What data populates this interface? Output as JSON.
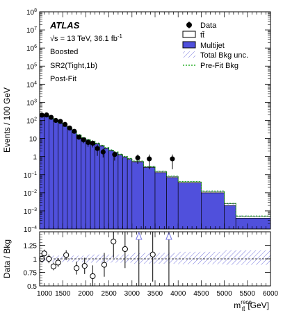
{
  "chart_data": [
    {
      "type": "bar",
      "panel": "main",
      "yscale": "log",
      "ylabel": "Events / 100 GeV",
      "ylim": [
        0.0001,
        100000000
      ],
      "xlim": [
        1000,
        6000
      ],
      "y_ticks": [
        {
          "v": 100000000,
          "base": "10",
          "exp": "8"
        },
        {
          "v": 10000000,
          "base": "10",
          "exp": "7"
        },
        {
          "v": 1000000,
          "base": "10",
          "exp": "6"
        },
        {
          "v": 100000,
          "base": "10",
          "exp": "5"
        },
        {
          "v": 10000,
          "base": "10",
          "exp": "4"
        },
        {
          "v": 1000,
          "base": "10",
          "exp": "3"
        },
        {
          "v": 100,
          "base": "10",
          "exp": "2"
        },
        {
          "v": 10,
          "base": "10",
          "exp": ""
        },
        {
          "v": 1,
          "base": "1",
          "exp": ""
        },
        {
          "v": 0.1,
          "base": "10",
          "exp": "−1"
        },
        {
          "v": 0.01,
          "base": "10",
          "exp": "−2"
        },
        {
          "v": 0.001,
          "base": "10",
          "exp": "−3"
        },
        {
          "v": 0.0001,
          "base": "10",
          "exp": "−4"
        }
      ],
      "bin_edges": [
        1000,
        1100,
        1200,
        1300,
        1400,
        1500,
        1600,
        1700,
        1800,
        1900,
        2000,
        2100,
        2200,
        2300,
        2400,
        2500,
        2600,
        2700,
        2800,
        2900,
        3000,
        3250,
        3500,
        3750,
        4000,
        4500,
        5000,
        5250,
        6000
      ],
      "series": [
        {
          "name": "Multijet",
          "color": "#5050dc",
          "values": [
            175,
            170,
            130,
            95,
            70,
            48,
            33,
            22,
            15,
            10,
            8,
            6.5,
            5,
            3.8,
            2.8,
            2.1,
            1.6,
            1.2,
            0.9,
            0.7,
            0.5,
            0.25,
            0.13,
            0.07,
            0.035,
            0.01,
            0.002,
            0.0004
          ]
        },
        {
          "name": "tt̄",
          "color": "#ffffff",
          "values": [
            5,
            5,
            4,
            3,
            2.5,
            2,
            1.5,
            1,
            0.8,
            0.6,
            0.5,
            0.4,
            0.3,
            0.25,
            0.2,
            0.15,
            0.12,
            0.1,
            0.08,
            0.06,
            0.05,
            0.03,
            0.02,
            0.01,
            0.005,
            0.002,
            0.0005,
            0.0001
          ]
        }
      ],
      "data_points": [
        {
          "x": 1050,
          "y": 195,
          "err": 14
        },
        {
          "x": 1150,
          "y": 200,
          "err": 14
        },
        {
          "x": 1250,
          "y": 148,
          "err": 12
        },
        {
          "x": 1350,
          "y": 100,
          "err": 10
        },
        {
          "x": 1450,
          "y": 88,
          "err": 9
        },
        {
          "x": 1550,
          "y": 60,
          "err": 8
        },
        {
          "x": 1650,
          "y": 38,
          "err": 6
        },
        {
          "x": 1750,
          "y": 25,
          "err": 5
        },
        {
          "x": 1850,
          "y": 12,
          "err": 3.5
        },
        {
          "x": 1950,
          "y": 8.5,
          "err": 3
        },
        {
          "x": 2050,
          "y": 6,
          "err": 2.5
        },
        {
          "x": 2150,
          "y": 5.5,
          "err": 2.3
        },
        {
          "x": 2250,
          "y": 2.8,
          "err": 1.7
        },
        {
          "x": 2375,
          "y": 1.8,
          "err": 0.9
        },
        {
          "x": 2625,
          "y": 1.3,
          "err": 0.7
        },
        {
          "x": 3125,
          "y": 0.85,
          "err": 0.45
        },
        {
          "x": 3375,
          "y": 0.75,
          "err": 0.55
        },
        {
          "x": 3875,
          "y": 0.75,
          "err": 0.55
        }
      ]
    },
    {
      "type": "scatter",
      "panel": "ratio",
      "ylabel": "Data / Bkg",
      "xlabel_base": "m",
      "xlabel_sub": "tt̄",
      "xlabel_sup": "reco",
      "xlabel_unit": "[GeV]",
      "ylim": [
        0.5,
        1.5
      ],
      "xlim": [
        1000,
        6000
      ],
      "y_ticks": [
        "1.25",
        "1",
        "0.75",
        "0.5"
      ],
      "x_ticks": [
        "1000",
        "1500",
        "2000",
        "2500",
        "3000",
        "3500",
        "4000",
        "4500",
        "5000",
        "5500",
        "6000"
      ],
      "reference": 1.0,
      "unc_band": [
        {
          "x0": 1000,
          "x1": 2000,
          "lo": 0.94,
          "hi": 1.06
        },
        {
          "x0": 2000,
          "x1": 3000,
          "lo": 0.93,
          "hi": 1.08
        },
        {
          "x0": 3000,
          "x1": 4000,
          "lo": 0.91,
          "hi": 1.11
        },
        {
          "x0": 4000,
          "x1": 5000,
          "lo": 0.9,
          "hi": 1.13
        },
        {
          "x0": 5000,
          "x1": 6000,
          "lo": 0.89,
          "hi": 1.16
        }
      ],
      "points": [
        {
          "x": 1050,
          "y": 1.0,
          "err": 0.07
        },
        {
          "x": 1100,
          "y": 1.1,
          "err": 0.07
        },
        {
          "x": 1200,
          "y": 1.0,
          "err": 0.08
        },
        {
          "x": 1300,
          "y": 0.86,
          "err": 0.07
        },
        {
          "x": 1400,
          "y": 0.93,
          "err": 0.08
        },
        {
          "x": 1575,
          "y": 1.07,
          "err": 0.09
        },
        {
          "x": 1800,
          "y": 0.83,
          "err": 0.12
        },
        {
          "x": 1975,
          "y": 0.87,
          "err": 0.15
        },
        {
          "x": 2150,
          "y": 0.68,
          "err": 0.2
        },
        {
          "x": 2400,
          "y": 0.89,
          "err": 0.22
        },
        {
          "x": 2600,
          "y": 1.32,
          "err": 0.3
        },
        {
          "x": 2850,
          "y": 1.18,
          "err": 0.35
        },
        {
          "x": 3450,
          "y": 1.08,
          "err": 0.5
        }
      ],
      "off_scale_markers": [
        3150,
        3800
      ]
    }
  ],
  "labels": {
    "atlas": "ATLAS",
    "energy": "√s = 13 TeV, 36.1 fb",
    "energy_sup": "-1",
    "line2": "Boosted",
    "line3": "SR2(Tight,1b)",
    "line4": "Post-Fit"
  },
  "legend": [
    {
      "name": "Data",
      "kind": "marker"
    },
    {
      "name": "tt̄",
      "kind": "box-white"
    },
    {
      "name": "Multijet",
      "kind": "box-blue"
    },
    {
      "name": "Total Bkg unc.",
      "kind": "hatch"
    },
    {
      "name": "Pre-Fit Bkg",
      "kind": "dashed"
    }
  ],
  "colors": {
    "multijet": "#5050dc",
    "prefit": "#00a000",
    "hatch": "#7f7fe0",
    "offscale": "#8080e8"
  }
}
